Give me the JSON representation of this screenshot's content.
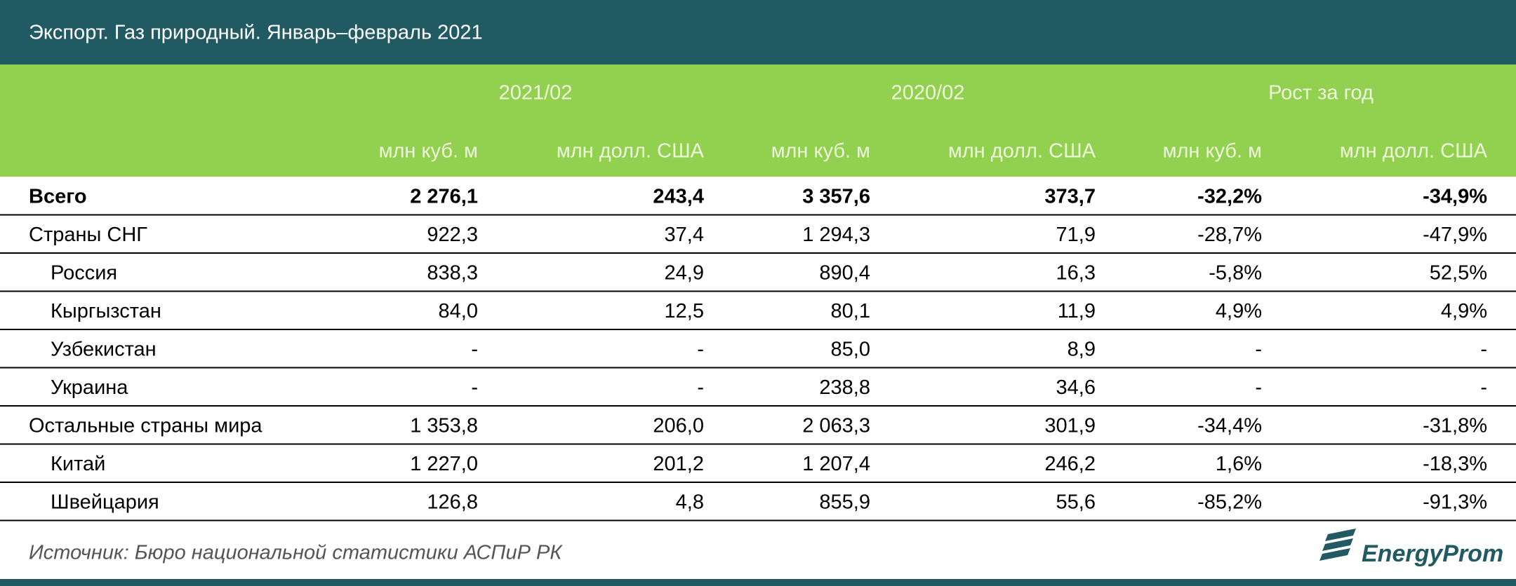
{
  "header": {
    "title": "Экспорт. Газ природный. Январь–февраль 2021"
  },
  "table": {
    "column_groups": [
      "2021/02",
      "2020/02",
      "Рост за год"
    ],
    "units": [
      "млн куб. м",
      "млн долл. США",
      "млн куб. м",
      "млн долл. США",
      "млн куб. м",
      "млн долл. США"
    ],
    "total": {
      "label": "Всего",
      "cells": [
        "2 276,1",
        "243,4",
        "3 357,6",
        "373,7",
        "-32,2%",
        "-34,9%"
      ]
    },
    "groups": [
      {
        "label": "Страны СНГ",
        "cells": [
          "922,3",
          "37,4",
          "1 294,3",
          "71,9",
          "-28,7%",
          "-47,9%"
        ],
        "children": [
          {
            "label": "Россия",
            "cells": [
              "838,3",
              "24,9",
              "890,4",
              "16,3",
              "-5,8%",
              "52,5%"
            ]
          },
          {
            "label": "Кыргызстан",
            "cells": [
              "84,0",
              "12,5",
              "80,1",
              "11,9",
              "4,9%",
              "4,9%"
            ]
          },
          {
            "label": "Узбекистан",
            "cells": [
              "-",
              "-",
              "85,0",
              "8,9",
              "-",
              "-"
            ]
          },
          {
            "label": "Украина",
            "cells": [
              "-",
              "-",
              "238,8",
              "34,6",
              "-",
              "-"
            ]
          }
        ]
      },
      {
        "label": "Остальные страны мира",
        "cells": [
          "1 353,8",
          "206,0",
          "2 063,3",
          "301,9",
          "-34,4%",
          "-31,8%"
        ],
        "children": [
          {
            "label": "Китай",
            "cells": [
              "1 227,0",
              "201,2",
              "1 207,4",
              "246,2",
              "1,6%",
              "-18,3%"
            ]
          },
          {
            "label": "Швейцария",
            "cells": [
              "126,8",
              "4,8",
              "855,9",
              "55,6",
              "-85,2%",
              "-91,3%"
            ]
          }
        ]
      }
    ]
  },
  "footer": {
    "source": "Источник: Бюро национальной статистики АСПиР РК",
    "logo": "EnergyProm"
  }
}
